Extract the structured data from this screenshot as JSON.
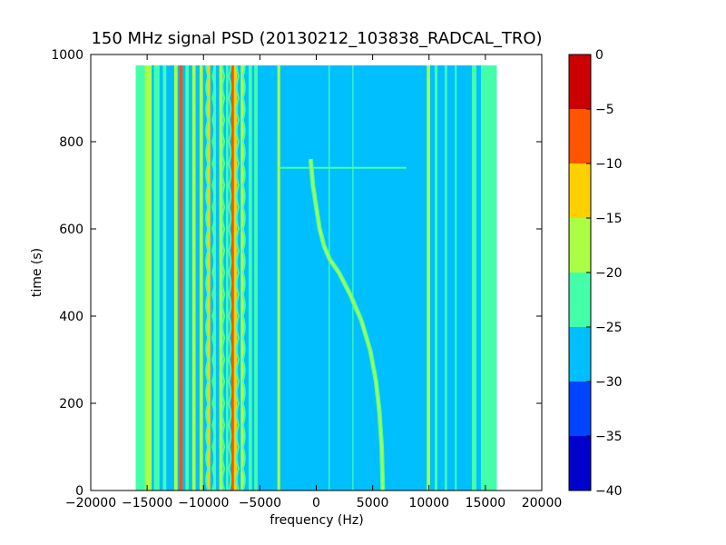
{
  "chart_data": {
    "type": "heatmap",
    "title": "150 MHz signal PSD (20130212_103838_RADCAL_TRO)",
    "xlabel": "frequency (Hz)",
    "ylabel": "time (s)",
    "xlim": [
      -20000,
      20000
    ],
    "ylim": [
      0,
      1000
    ],
    "x_ticks": [
      -20000,
      -15000,
      -10000,
      -5000,
      0,
      5000,
      10000,
      15000,
      20000
    ],
    "y_ticks": [
      0,
      200,
      400,
      600,
      800,
      1000
    ],
    "x_tick_labels": [
      "−20000",
      "−15000",
      "−10000",
      "−5000",
      "0",
      "5000",
      "10000",
      "15000",
      "20000"
    ],
    "y_tick_labels": [
      "0",
      "200",
      "400",
      "600",
      "800",
      "1000"
    ],
    "data_extent": {
      "x": [
        -16000,
        16000
      ],
      "y": [
        0,
        975
      ]
    },
    "background_level": -27.5,
    "colorbar": {
      "levels": [
        -40,
        -35,
        -30,
        -25,
        -20,
        -15,
        -10,
        -5,
        0
      ],
      "tick_labels": [
        "−40",
        "−35",
        "−30",
        "−25",
        "−20",
        "−15",
        "−10",
        "−5",
        "0"
      ],
      "colors": [
        "#0000cc",
        "#0044ff",
        "#00bfff",
        "#44ffaa",
        "#aaff44",
        "#ffd000",
        "#ff5500",
        "#cc0000"
      ]
    },
    "bands": [
      {
        "x0": -16000,
        "x1": -15000,
        "level": -22.5
      },
      {
        "x0": -15200,
        "x1": -14600,
        "level": -17.5
      },
      {
        "x0": -14400,
        "x1": -13900,
        "level": -22.5
      },
      {
        "x0": -13600,
        "x1": -13300,
        "level": -22.5
      },
      {
        "x0": -12600,
        "x1": -12300,
        "level": -17.5
      },
      {
        "x0": -12150,
        "x1": -11850,
        "level": -7.5
      },
      {
        "x0": -11600,
        "x1": -11300,
        "level": -22.5
      },
      {
        "x0": -11000,
        "x1": -10700,
        "level": -17.5
      },
      {
        "x0": -10350,
        "x1": -10050,
        "level": -17.5
      },
      {
        "x0": -9700,
        "x1": -9400,
        "level": -12.5
      },
      {
        "x0": -9100,
        "x1": -8900,
        "level": -22.5
      },
      {
        "x0": -8600,
        "x1": -8300,
        "level": -17.5
      },
      {
        "x0": -8000,
        "x1": -7800,
        "level": -22.5
      },
      {
        "x0": -7550,
        "x1": -7300,
        "level": -7.5
      },
      {
        "x0": -7300,
        "x1": -7050,
        "level": -12.5
      },
      {
        "x0": -6700,
        "x1": -6400,
        "level": -17.5
      },
      {
        "x0": -6000,
        "x1": -5700,
        "level": -22.5
      },
      {
        "x0": -5500,
        "x1": -5200,
        "level": -22.5
      },
      {
        "x0": -3450,
        "x1": -3200,
        "level": -17.5
      },
      {
        "x0": 1100,
        "x1": 1200,
        "level": -22.5
      },
      {
        "x0": 3200,
        "x1": 3300,
        "level": -22.5
      },
      {
        "x0": 9800,
        "x1": 10100,
        "level": -17.5
      },
      {
        "x0": 10500,
        "x1": 10750,
        "level": -22.5
      },
      {
        "x0": 11400,
        "x1": 11600,
        "level": -22.5
      },
      {
        "x0": 12300,
        "x1": 12450,
        "level": -22.5
      },
      {
        "x0": 13800,
        "x1": 14200,
        "level": -22.5
      },
      {
        "x0": 14600,
        "x1": 16000,
        "level": -22.5
      }
    ],
    "lobes": {
      "centers": [
        -9400,
        -7950,
        -6700
      ],
      "level": -22.5,
      "y_range": [
        0,
        975
      ],
      "period": 50
    },
    "hline": {
      "y": 740,
      "x_range": [
        -3300,
        8000
      ],
      "level": -22.5
    },
    "track": {
      "level": -17.5,
      "points": [
        [
          -500,
          760
        ],
        [
          -300,
          700
        ],
        [
          0,
          650
        ],
        [
          300,
          600
        ],
        [
          700,
          560
        ],
        [
          1200,
          530
        ],
        [
          2000,
          500
        ],
        [
          3000,
          450
        ],
        [
          4000,
          390
        ],
        [
          4800,
          320
        ],
        [
          5300,
          250
        ],
        [
          5600,
          180
        ],
        [
          5800,
          100
        ],
        [
          5900,
          0
        ]
      ]
    }
  }
}
